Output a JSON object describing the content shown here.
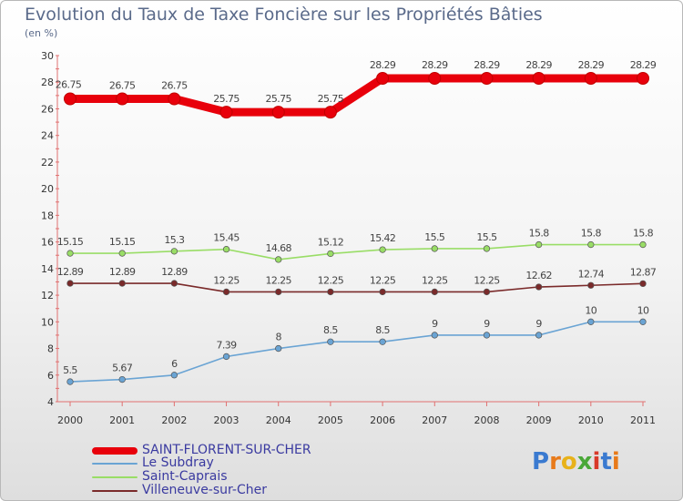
{
  "chart_data": {
    "type": "line",
    "title": "Evolution du Taux de Taxe Foncière sur les Propriétés Bâties",
    "ylabel": "(en %)",
    "xlabel": "",
    "categories": [
      "2000",
      "2001",
      "2002",
      "2003",
      "2004",
      "2005",
      "2006",
      "2007",
      "2008",
      "2009",
      "2010",
      "2011"
    ],
    "ylim": [
      4,
      30
    ],
    "yticks": [
      4,
      6,
      8,
      10,
      12,
      14,
      16,
      18,
      20,
      22,
      24,
      26,
      28,
      30
    ],
    "grid": false,
    "legend_position": "bottom-left",
    "series": [
      {
        "name": "SAINT-FLORENT-SUR-CHER",
        "color": "#e8000b",
        "values": [
          26.75,
          26.75,
          26.75,
          25.75,
          25.75,
          25.75,
          28.29,
          28.29,
          28.29,
          28.29,
          28.29,
          28.29
        ],
        "labels": [
          "26.75",
          "26.75",
          "26.75",
          "25.75",
          "25.75",
          "25.75",
          "28.29",
          "28.29",
          "28.29",
          "28.29",
          "28.29",
          "28.29"
        ]
      },
      {
        "name": "Le Subdray",
        "color": "#6aa4d4",
        "values": [
          5.5,
          5.67,
          6,
          7.39,
          8,
          8.5,
          8.5,
          9,
          9,
          9,
          10,
          10
        ],
        "labels": [
          "5.5",
          "5.67",
          "6",
          "7.39",
          "8",
          "8.5",
          "8.5",
          "9",
          "9",
          "9",
          "10",
          "10"
        ]
      },
      {
        "name": "Saint-Caprais",
        "color": "#99dd66",
        "values": [
          15.15,
          15.15,
          15.3,
          15.45,
          14.68,
          15.12,
          15.42,
          15.5,
          15.5,
          15.8,
          15.8,
          15.8
        ],
        "labels": [
          "15.15",
          "15.15",
          "15.3",
          "15.45",
          "14.68",
          "15.12",
          "15.42",
          "15.5",
          "15.5",
          "15.8",
          "15.8",
          "15.8"
        ]
      },
      {
        "name": "Villeneuve-sur-Cher",
        "color": "#7a2a2a",
        "values": [
          12.89,
          12.89,
          12.89,
          12.25,
          12.25,
          12.25,
          12.25,
          12.25,
          12.25,
          12.62,
          12.74,
          12.87
        ],
        "labels": [
          "12.89",
          "12.89",
          "12.89",
          "12.25",
          "12.25",
          "12.25",
          "12.25",
          "12.25",
          "12.25",
          "12.62",
          "12.74",
          "12.87"
        ]
      }
    ]
  },
  "logo": {
    "letters": [
      {
        "ch": "P",
        "color": "#3a7ad0"
      },
      {
        "ch": "r",
        "color": "#e87a1a"
      },
      {
        "ch": "o",
        "color": "#e8b21a"
      },
      {
        "ch": "x",
        "color": "#4aa838"
      },
      {
        "ch": "i",
        "color": "#d83a2a"
      },
      {
        "ch": "t",
        "color": "#3a7ad0"
      },
      {
        "ch": "i",
        "color": "#e87a1a"
      }
    ]
  }
}
